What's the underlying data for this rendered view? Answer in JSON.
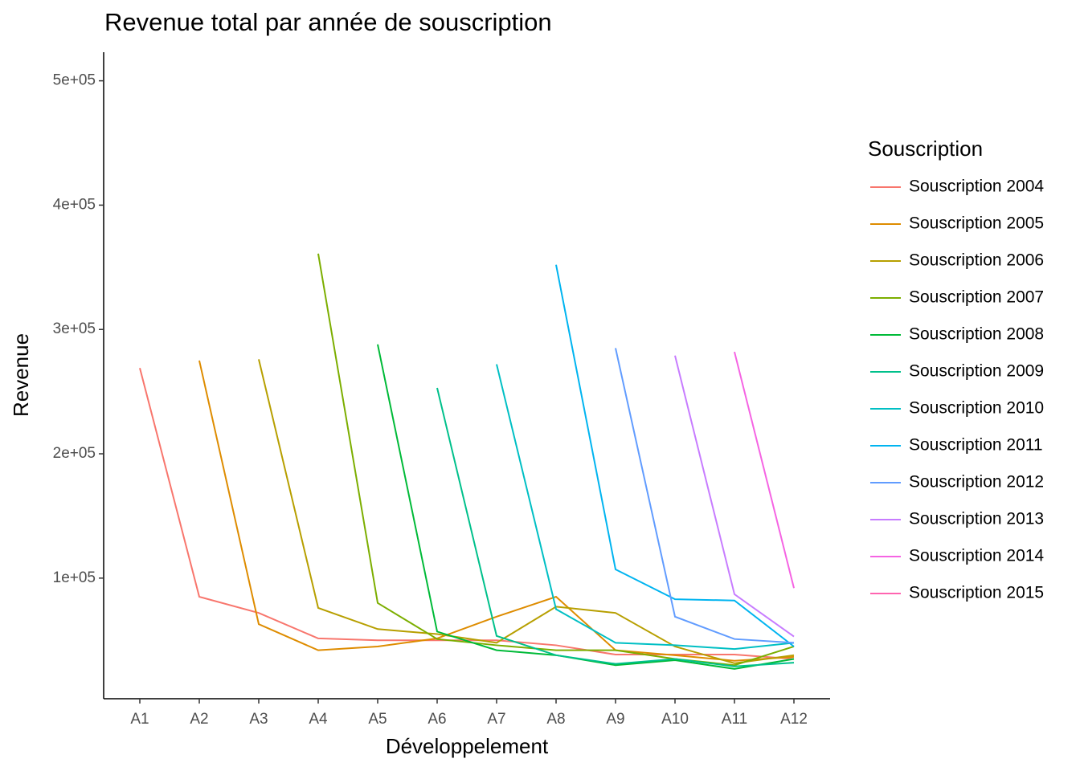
{
  "chart_data": {
    "type": "line",
    "title": "Revenue total par année de souscription",
    "x_label": "Développelement",
    "y_label": "Revenue",
    "legend_title": "Souscription",
    "legend_position": "right",
    "categories": [
      "A1",
      "A2",
      "A3",
      "A4",
      "A5",
      "A6",
      "A7",
      "A8",
      "A9",
      "A10",
      "A11",
      "A12"
    ],
    "ylim": [
      3000,
      523000
    ],
    "yticks": [
      {
        "value": 100000,
        "label": "1e+05"
      },
      {
        "value": 200000,
        "label": "2e+05"
      },
      {
        "value": 300000,
        "label": "3e+05"
      },
      {
        "value": 400000,
        "label": "4e+05"
      },
      {
        "value": 500000,
        "label": "5e+05"
      }
    ],
    "series": [
      {
        "name": "Souscription 2004",
        "color": "#F8766D",
        "values": [
          269000,
          85000,
          72000,
          51500,
          50000,
          50000,
          50000,
          46000,
          38500,
          38500,
          38500,
          35000
        ]
      },
      {
        "name": "Souscription 2005",
        "color": "#DE8C00",
        "values": [
          null,
          275000,
          63000,
          42000,
          45000,
          51500,
          69000,
          85000,
          42000,
          38000,
          33500,
          36700
        ]
      },
      {
        "name": "Souscription 2006",
        "color": "#B79F00",
        "values": [
          null,
          null,
          276000,
          76000,
          59000,
          55000,
          48000,
          77000,
          72000,
          45000,
          31500,
          38000
        ]
      },
      {
        "name": "Souscription 2007",
        "color": "#7CAE00",
        "values": [
          null,
          null,
          null,
          361000,
          80000,
          51000,
          46000,
          42000,
          42000,
          35000,
          30000,
          45000
        ]
      },
      {
        "name": "Souscription 2008",
        "color": "#00BA38",
        "values": [
          null,
          null,
          null,
          null,
          288000,
          57000,
          42000,
          38000,
          30000,
          34000,
          27000,
          35000
        ]
      },
      {
        "name": "Souscription 2009",
        "color": "#00C08B",
        "values": [
          null,
          null,
          null,
          null,
          null,
          253000,
          53500,
          38000,
          31000,
          35000,
          29000,
          32000
        ]
      },
      {
        "name": "Souscription 2010",
        "color": "#00BFC4",
        "values": [
          null,
          null,
          null,
          null,
          null,
          null,
          272000,
          75000,
          48000,
          46000,
          43000,
          48000
        ]
      },
      {
        "name": "Souscription 2011",
        "color": "#00B4F0",
        "values": [
          null,
          null,
          null,
          null,
          null,
          null,
          null,
          352000,
          107000,
          83000,
          82000,
          45000
        ]
      },
      {
        "name": "Souscription 2012",
        "color": "#619CFF",
        "values": [
          null,
          null,
          null,
          null,
          null,
          null,
          null,
          null,
          285000,
          69000,
          51000,
          48000
        ]
      },
      {
        "name": "Souscription 2013",
        "color": "#C77CFF",
        "values": [
          null,
          null,
          null,
          null,
          null,
          null,
          null,
          null,
          null,
          279000,
          87000,
          53000
        ]
      },
      {
        "name": "Souscription 2014",
        "color": "#F564E3",
        "values": [
          null,
          null,
          null,
          null,
          null,
          null,
          null,
          null,
          null,
          null,
          282000,
          92000
        ]
      },
      {
        "name": "Souscription 2015",
        "color": "#FF64B0",
        "values": [
          null,
          null,
          null,
          null,
          null,
          null,
          null,
          null,
          null,
          null,
          null,
          null
        ]
      }
    ]
  }
}
